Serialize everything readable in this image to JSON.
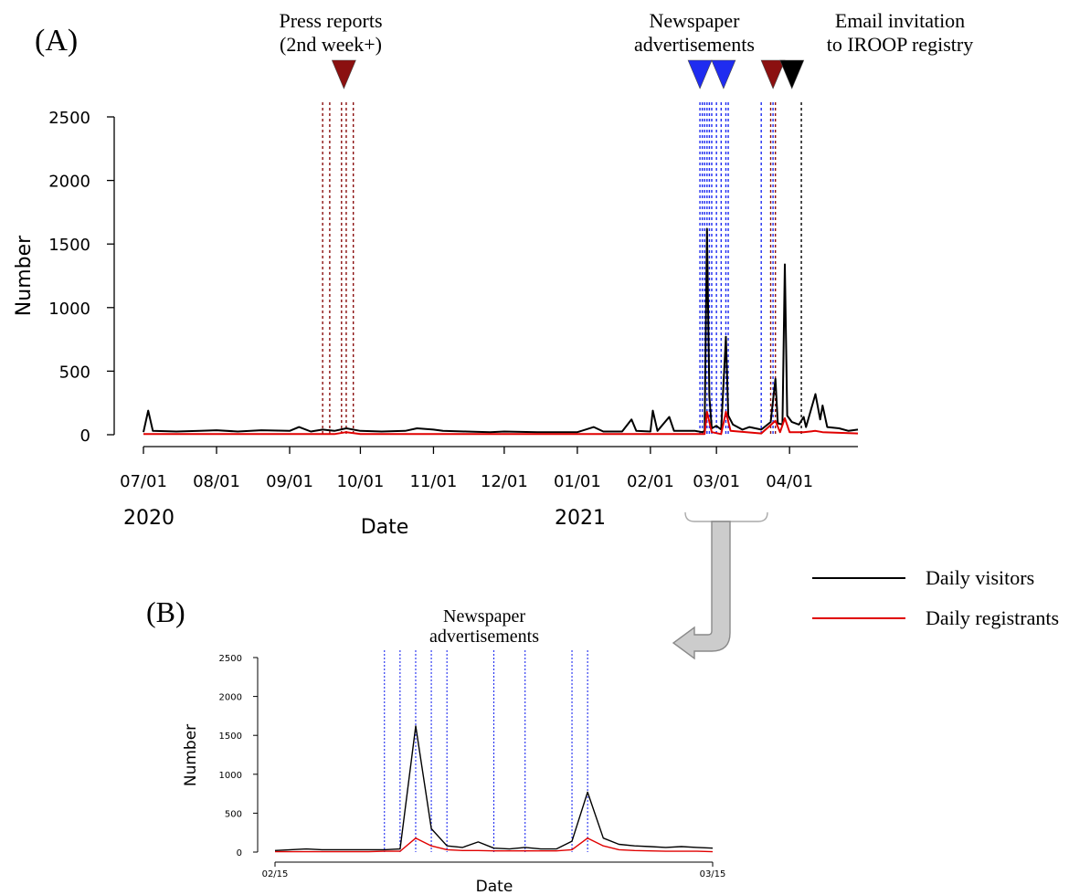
{
  "panel_a": {
    "label": "(A)",
    "annotations": {
      "press": [
        "Press reports",
        "(2nd week+)"
      ],
      "newspaper": [
        "Newspaper",
        "advertisements"
      ],
      "email": [
        "Email invitation",
        "to IROOP registry"
      ]
    },
    "year_labels": [
      "2020",
      "2021"
    ],
    "colors": {
      "visitors": "#000000",
      "registrants": "#e00000",
      "press": "#8b1010",
      "newspaper": "#1f2cf0",
      "email": "#000000"
    }
  },
  "panel_b": {
    "label": "(B)",
    "annotation": [
      "Newspaper",
      "advertisements"
    ]
  },
  "legend": {
    "items": [
      {
        "label": "Daily visitors",
        "color": "#000000"
      },
      {
        "label": "Daily registrants",
        "color": "#e00000"
      }
    ]
  },
  "chart_data": [
    {
      "type": "line",
      "panel": "A",
      "xlabel": "Date",
      "ylabel": "Number",
      "ylim": [
        0,
        2500
      ],
      "yticks": [
        0,
        500,
        1000,
        1500,
        2000,
        2500
      ],
      "xticks": [
        "07/01",
        "08/01",
        "09/01",
        "10/01",
        "11/01",
        "12/01",
        "01/01",
        "02/01",
        "03/01",
        "04/01"
      ],
      "xtick_dates": [
        "2020-07-01",
        "2020-08-01",
        "2020-09-01",
        "2020-10-01",
        "2020-11-01",
        "2020-12-01",
        "2021-01-01",
        "2021-02-01",
        "2021-03-01",
        "2021-04-01"
      ],
      "xlim": [
        "2020-07-01",
        "2021-04-30"
      ],
      "series": [
        {
          "name": "Daily visitors",
          "color": "#000000",
          "points": [
            [
              "2020-07-01",
              20
            ],
            [
              "2020-07-03",
              190
            ],
            [
              "2020-07-05",
              30
            ],
            [
              "2020-07-15",
              25
            ],
            [
              "2020-07-25",
              30
            ],
            [
              "2020-08-01",
              35
            ],
            [
              "2020-08-10",
              25
            ],
            [
              "2020-08-20",
              35
            ],
            [
              "2020-09-01",
              30
            ],
            [
              "2020-09-05",
              60
            ],
            [
              "2020-09-10",
              25
            ],
            [
              "2020-09-15",
              40
            ],
            [
              "2020-09-20",
              30
            ],
            [
              "2020-09-25",
              50
            ],
            [
              "2020-10-01",
              30
            ],
            [
              "2020-10-10",
              25
            ],
            [
              "2020-10-20",
              30
            ],
            [
              "2020-10-25",
              50
            ],
            [
              "2020-11-01",
              40
            ],
            [
              "2020-11-05",
              30
            ],
            [
              "2020-11-15",
              25
            ],
            [
              "2020-11-25",
              20
            ],
            [
              "2020-12-01",
              25
            ],
            [
              "2020-12-15",
              20
            ],
            [
              "2020-12-25",
              20
            ],
            [
              "2021-01-01",
              20
            ],
            [
              "2021-01-08",
              60
            ],
            [
              "2021-01-12",
              25
            ],
            [
              "2021-01-20",
              25
            ],
            [
              "2021-01-24",
              120
            ],
            [
              "2021-01-26",
              30
            ],
            [
              "2021-02-01",
              25
            ],
            [
              "2021-02-02",
              190
            ],
            [
              "2021-02-04",
              30
            ],
            [
              "2021-02-09",
              140
            ],
            [
              "2021-02-11",
              30
            ],
            [
              "2021-02-20",
              30
            ],
            [
              "2021-02-23",
              20
            ],
            [
              "2021-02-24",
              30
            ],
            [
              "2021-02-25",
              1620
            ],
            [
              "2021-02-26",
              300
            ],
            [
              "2021-02-27",
              50
            ],
            [
              "2021-03-01",
              70
            ],
            [
              "2021-03-03",
              40
            ],
            [
              "2021-03-05",
              770
            ],
            [
              "2021-03-06",
              150
            ],
            [
              "2021-03-08",
              80
            ],
            [
              "2021-03-12",
              40
            ],
            [
              "2021-03-15",
              60
            ],
            [
              "2021-03-20",
              40
            ],
            [
              "2021-03-24",
              100
            ],
            [
              "2021-03-26",
              440
            ],
            [
              "2021-03-27",
              90
            ],
            [
              "2021-03-29",
              80
            ],
            [
              "2021-03-30",
              1340
            ],
            [
              "2021-03-31",
              150
            ],
            [
              "2021-04-02",
              100
            ],
            [
              "2021-04-05",
              80
            ],
            [
              "2021-04-07",
              140
            ],
            [
              "2021-04-08",
              60
            ],
            [
              "2021-04-12",
              320
            ],
            [
              "2021-04-14",
              120
            ],
            [
              "2021-04-15",
              230
            ],
            [
              "2021-04-17",
              60
            ],
            [
              "2021-04-22",
              50
            ],
            [
              "2021-04-26",
              30
            ],
            [
              "2021-04-30",
              40
            ]
          ]
        },
        {
          "name": "Daily registrants",
          "color": "#e00000",
          "points": [
            [
              "2020-07-01",
              5
            ],
            [
              "2020-09-20",
              5
            ],
            [
              "2020-09-25",
              20
            ],
            [
              "2020-10-01",
              5
            ],
            [
              "2021-02-24",
              5
            ],
            [
              "2021-02-25",
              180
            ],
            [
              "2021-02-27",
              20
            ],
            [
              "2021-03-03",
              5
            ],
            [
              "2021-03-05",
              180
            ],
            [
              "2021-03-07",
              30
            ],
            [
              "2021-03-20",
              10
            ],
            [
              "2021-03-26",
              110
            ],
            [
              "2021-03-28",
              20
            ],
            [
              "2021-03-30",
              130
            ],
            [
              "2021-04-01",
              20
            ],
            [
              "2021-04-07",
              20
            ],
            [
              "2021-04-12",
              30
            ],
            [
              "2021-04-15",
              20
            ],
            [
              "2021-04-30",
              10
            ]
          ]
        }
      ],
      "event_lines": {
        "press": [
          "2020-09-15",
          "2020-09-18",
          "2020-09-23",
          "2020-09-25",
          "2020-09-28",
          "2021-03-24",
          "2021-03-26"
        ],
        "newspaper": [
          "2021-02-22",
          "2021-02-23",
          "2021-02-24",
          "2021-02-25",
          "2021-02-26",
          "2021-02-27",
          "2021-03-01",
          "2021-03-03",
          "2021-03-05",
          "2021-03-06",
          "2021-03-20",
          "2021-03-25"
        ],
        "email": [
          "2021-04-06"
        ]
      },
      "markers": [
        {
          "date": "2020-09-24",
          "type": "press"
        },
        {
          "date": "2021-02-22",
          "type": "newspaper"
        },
        {
          "date": "2021-03-04",
          "type": "newspaper"
        },
        {
          "date": "2021-03-25",
          "type": "press"
        },
        {
          "date": "2021-04-02",
          "type": "email"
        }
      ]
    },
    {
      "type": "line",
      "panel": "B",
      "xlabel": "Date",
      "ylabel": "Number",
      "ylim": [
        0,
        2500
      ],
      "yticks": [
        0,
        500,
        1000,
        1500,
        2000,
        2500
      ],
      "xticks": [
        "02/15",
        "03/15"
      ],
      "xtick_days": [
        0,
        28
      ],
      "xlim": [
        0,
        28
      ],
      "series": [
        {
          "name": "Daily visitors",
          "color": "#000000",
          "points": [
            [
              0,
              20
            ],
            [
              1,
              30
            ],
            [
              2,
              40
            ],
            [
              3,
              30
            ],
            [
              4,
              30
            ],
            [
              5,
              30
            ],
            [
              6,
              30
            ],
            [
              7,
              30
            ],
            [
              8,
              40
            ],
            [
              9,
              1620
            ],
            [
              10,
              300
            ],
            [
              11,
              80
            ],
            [
              12,
              60
            ],
            [
              13,
              130
            ],
            [
              14,
              50
            ],
            [
              15,
              40
            ],
            [
              16,
              60
            ],
            [
              17,
              40
            ],
            [
              18,
              40
            ],
            [
              19,
              140
            ],
            [
              20,
              770
            ],
            [
              21,
              180
            ],
            [
              22,
              100
            ],
            [
              23,
              80
            ],
            [
              24,
              70
            ],
            [
              25,
              60
            ],
            [
              26,
              70
            ],
            [
              27,
              60
            ],
            [
              28,
              50
            ]
          ]
        },
        {
          "name": "Daily registrants",
          "color": "#e00000",
          "points": [
            [
              0,
              5
            ],
            [
              1,
              5
            ],
            [
              2,
              5
            ],
            [
              3,
              5
            ],
            [
              4,
              5
            ],
            [
              5,
              5
            ],
            [
              6,
              5
            ],
            [
              7,
              10
            ],
            [
              8,
              10
            ],
            [
              9,
              180
            ],
            [
              10,
              80
            ],
            [
              11,
              30
            ],
            [
              12,
              20
            ],
            [
              13,
              20
            ],
            [
              14,
              15
            ],
            [
              15,
              15
            ],
            [
              16,
              15
            ],
            [
              17,
              15
            ],
            [
              18,
              15
            ],
            [
              19,
              30
            ],
            [
              20,
              180
            ],
            [
              21,
              80
            ],
            [
              22,
              30
            ],
            [
              23,
              20
            ],
            [
              24,
              15
            ],
            [
              25,
              10
            ],
            [
              26,
              10
            ],
            [
              27,
              10
            ],
            [
              28,
              5
            ]
          ]
        }
      ],
      "event_lines": [
        7,
        8,
        9,
        10,
        11,
        14,
        16,
        19,
        20
      ]
    }
  ]
}
